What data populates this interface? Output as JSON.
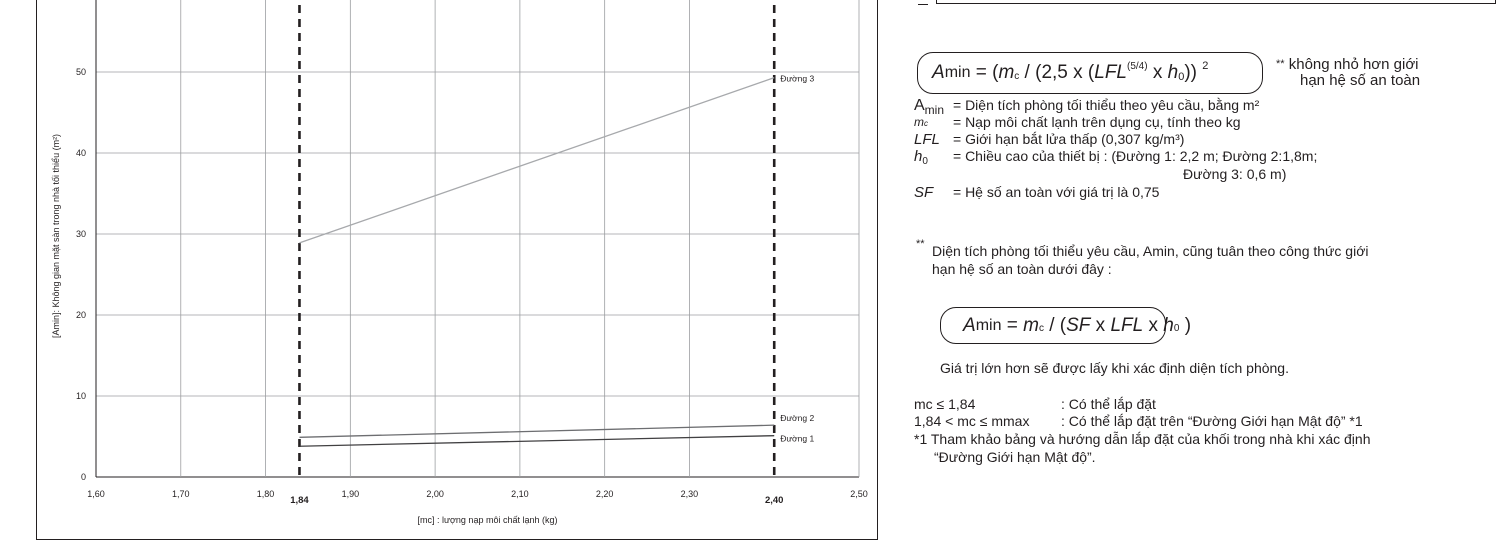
{
  "chart_data": {
    "type": "line",
    "ylabel": "[Amin]: Không gian mặt sàn trong nhà tối thiểu (m²)",
    "xlabel": "[mc] : lượng nạp môi chất lạnh (kg)",
    "xlim": [
      1.6,
      2.5
    ],
    "ylim": [
      0,
      60
    ],
    "x_ticks": [
      "1,60",
      "1,70",
      "1,80",
      "1,90",
      "2,00",
      "2,10",
      "2,20",
      "2,30",
      "2,50"
    ],
    "y_ticks": [
      "0",
      "10",
      "20",
      "30",
      "40",
      "50"
    ],
    "highlight_x": [
      {
        "x": 1.84,
        "label": "1,84"
      },
      {
        "x": 2.4,
        "label": "2,40"
      }
    ],
    "grid": "on",
    "series": [
      {
        "name": "Đường 3",
        "x": [
          1.84,
          2.4
        ],
        "y": [
          28.9,
          49.3
        ],
        "color": "#a7a9ac"
      },
      {
        "name": "Đường 2",
        "x": [
          1.84,
          2.4
        ],
        "y": [
          4.9,
          6.4
        ],
        "color": "#6d6e71"
      },
      {
        "name": "Đường 1",
        "x": [
          1.84,
          2.4
        ],
        "y": [
          3.8,
          5.1
        ],
        "color": "#414042"
      }
    ]
  },
  "right_panel": {
    "formula1": {
      "a": "A",
      "a_sub": "min",
      "eq": " = (",
      "mc": "m",
      "mc_sub": "c",
      "mid": " / (2,5 x (",
      "lfl": "LFL",
      "pow": "(5/4)",
      "x": " x ",
      "h": "h",
      "h_sub": "0",
      "end": ")) ",
      "sq": "2"
    },
    "note_star": "**",
    "note1": "không nhỏ hơn giới",
    "note2": "hạn hệ số an toàn",
    "defs": [
      {
        "sym": "Amin",
        "text": "= Diện tích phòng tối thiểu theo yêu cầu, bằng m²"
      },
      {
        "sym": "mc",
        "text": "= Nạp môi chất lạnh trên dụng cụ, tính theo kg"
      },
      {
        "sym": "LFL",
        "text": "= Giới hạn bắt lửa thấp (0,307 kg/m³)"
      },
      {
        "sym": "h0",
        "text": "= Chiều cao của thiết bị : (Đường 1: 2,2 m; Đường 2:1,8m;"
      },
      {
        "sym": "",
        "text": "Đường 3: 0,6 m)"
      },
      {
        "sym": "SF",
        "text": "= Hệ số an toàn với giá trị là 0,75"
      }
    ],
    "para_star": "**",
    "para1": "Diện tích phòng tối thiểu yêu cầu, Amin, cũng tuân theo công thức giới",
    "para2": "hạn hệ số an toàn dưới đây :",
    "formula2": {
      "a": "A",
      "a_sub": "min",
      "eq": " = ",
      "mc": "m",
      "mc_sub": "c",
      "mid": " / (",
      "sf": "SF",
      "x1": " x ",
      "lfl": "LFL",
      "x2": " x ",
      "h": "h",
      "h_sub": "0",
      "end": " )"
    },
    "larger": "Giá trị lớn hơn sẽ được lấy khi xác định diện tích phòng.",
    "cond1_left": "mc ≤ 1,84",
    "cond1_right": ":  Có thể lắp đặt",
    "cond2_left": "1,84 < mc ≤ mmax",
    "cond2_right": ":  Có thể lắp đặt trên “Đường Giới hạn Mật độ” *1",
    "foot1": "*1 Tham khảo bảng và hướng dẫn lắp đặt của khối trong nhà khi xác định",
    "foot2": "“Đường Giới hạn Mật độ”."
  }
}
